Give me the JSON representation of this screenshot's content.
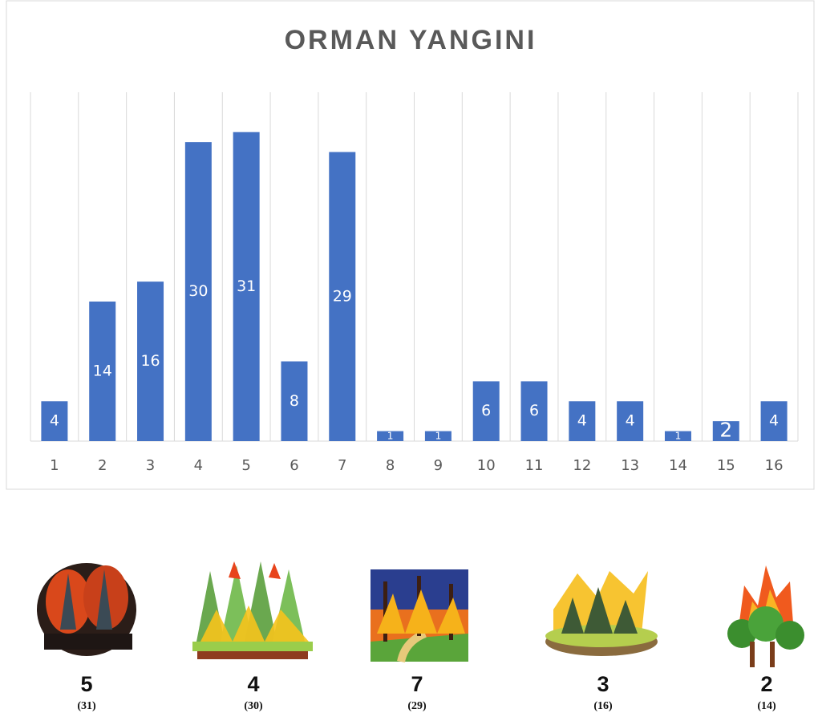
{
  "chart_data": {
    "type": "bar",
    "title": "ORMAN YANGINI",
    "categories": [
      "1",
      "2",
      "3",
      "4",
      "5",
      "6",
      "7",
      "8",
      "9",
      "10",
      "11",
      "12",
      "13",
      "14",
      "15",
      "16"
    ],
    "values": [
      4,
      14,
      16,
      30,
      31,
      8,
      29,
      1,
      1,
      6,
      6,
      4,
      4,
      1,
      2,
      4
    ],
    "color": "#4472c4",
    "ylim": [
      0,
      35
    ],
    "grid": true
  },
  "pictures": [
    {
      "label": "5",
      "count": "(31)"
    },
    {
      "label": "4",
      "count": "(30)"
    },
    {
      "label": "7",
      "count": "(29)"
    },
    {
      "label": "3",
      "count": "(16)"
    },
    {
      "label": "2",
      "count": "(14)"
    }
  ]
}
